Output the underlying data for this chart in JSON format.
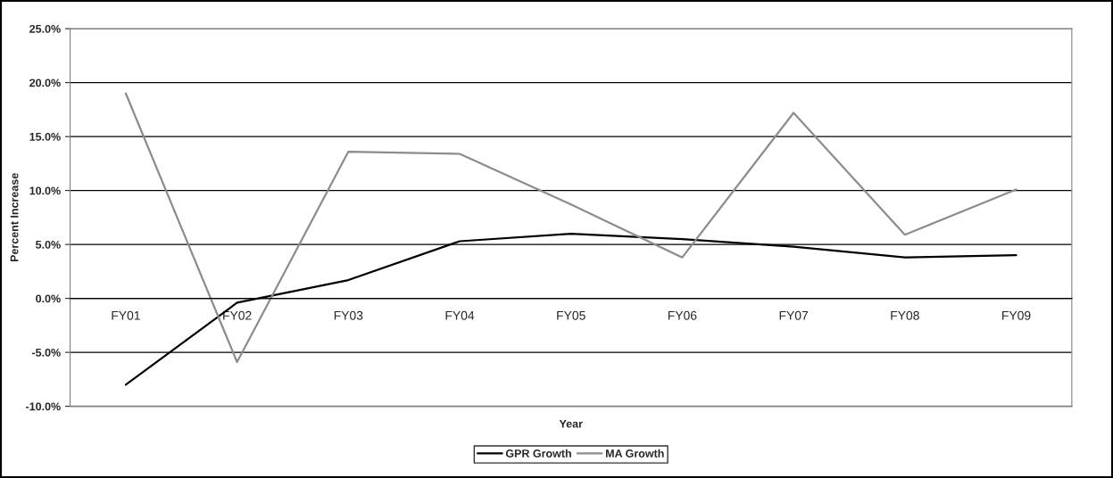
{
  "chart_data": {
    "type": "line",
    "xlabel": "Year",
    "ylabel": "Percent Increase",
    "categories": [
      "FY01",
      "FY02",
      "FY03",
      "FY04",
      "FY05",
      "FY06",
      "FY07",
      "FY08",
      "FY09"
    ],
    "series": [
      {
        "name": "GPR Growth",
        "color": "#000000",
        "values": [
          -8.0,
          -0.4,
          1.7,
          5.3,
          6.0,
          5.5,
          4.8,
          3.8,
          4.0
        ]
      },
      {
        "name": "MA Growth",
        "color": "#8c8c8c",
        "values": [
          19.0,
          -5.9,
          13.6,
          13.4,
          8.7,
          3.8,
          17.2,
          5.9,
          10.1
        ]
      }
    ],
    "ylim": [
      -10,
      25
    ],
    "yticks": [
      {
        "value": -10,
        "label": "-10.0%"
      },
      {
        "value": -5,
        "label": "-5.0%"
      },
      {
        "value": 0,
        "label": "0.0%"
      },
      {
        "value": 5,
        "label": "5.0%"
      },
      {
        "value": 10,
        "label": "10.0%"
      },
      {
        "value": 15,
        "label": "15.0%"
      },
      {
        "value": 20,
        "label": "20.0%"
      },
      {
        "value": 25,
        "label": "25.0%"
      }
    ],
    "grid": "y",
    "legend": "bottom",
    "marker": "none",
    "line_style": "solid"
  }
}
